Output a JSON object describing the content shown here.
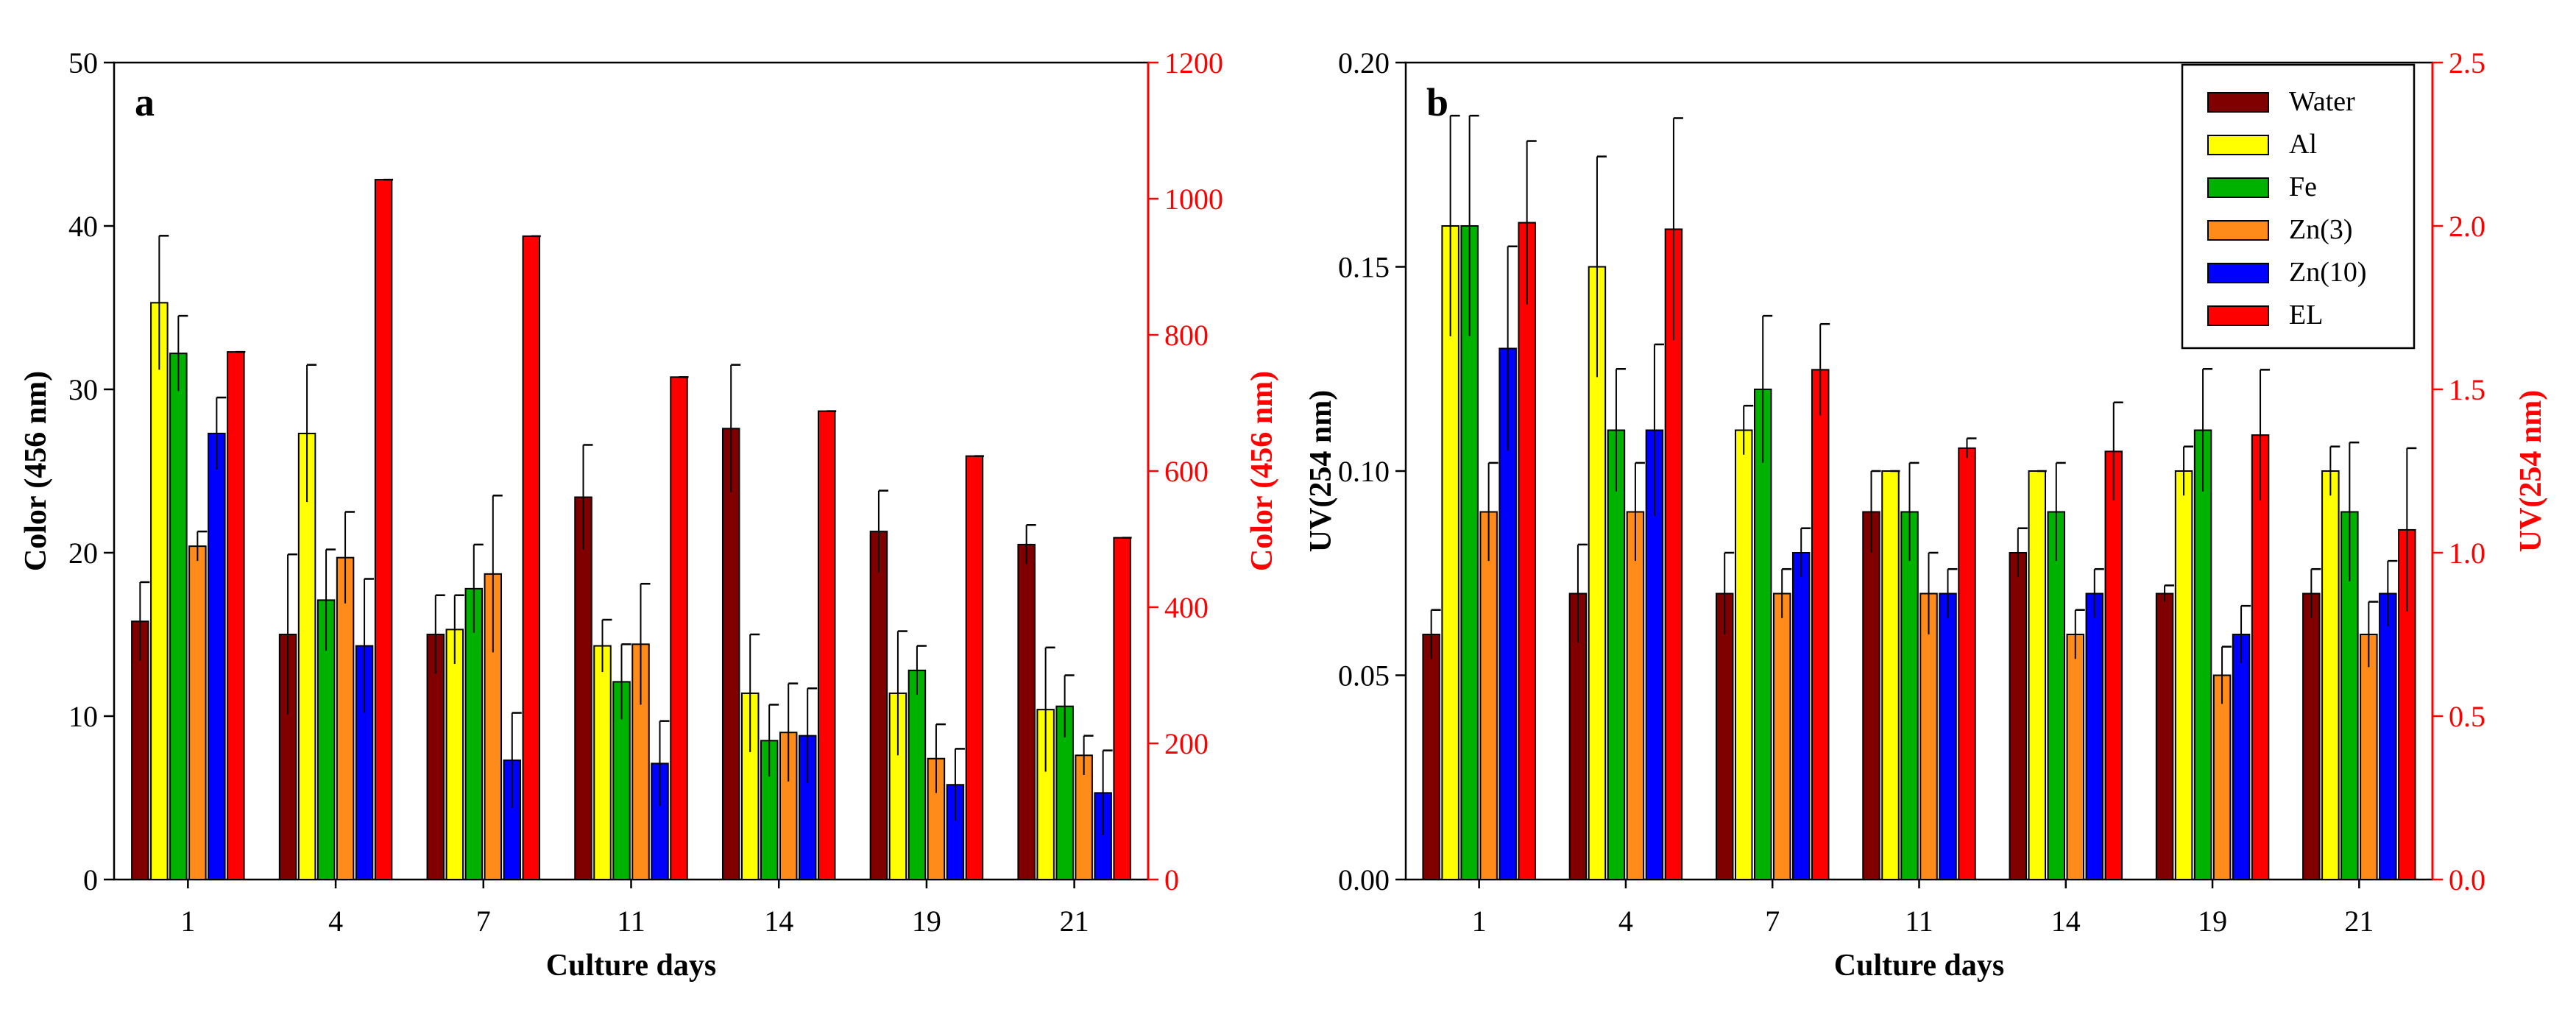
{
  "colors": {
    "Water": "#800000",
    "Al": "#ffff00",
    "Fe": "#00b200",
    "Zn(3)": "#ff8c1a",
    "Zn(10)": "#0000ff",
    "EL": "#ff0000",
    "right_axis": "#ff0000"
  },
  "legend": [
    "Water",
    "Al",
    "Fe",
    "Zn(3)",
    "Zn(10)",
    "EL"
  ],
  "chart_data": [
    {
      "type": "bar",
      "panel_label": "a",
      "xlabel": "Culture days",
      "ylabel": "Color  (456 nm)",
      "ylabel_right": "Color  (456 nm)",
      "ylim": [
        0,
        50
      ],
      "yticks": [
        "0",
        "10",
        "20",
        "30",
        "40",
        "50"
      ],
      "ylim_right": [
        0,
        1200
      ],
      "yticks_right": [
        "0",
        "200",
        "400",
        "600",
        "800",
        "1000",
        "1200"
      ],
      "categories": [
        "1",
        "4",
        "7",
        "11",
        "14",
        "19",
        "21"
      ],
      "series": [
        {
          "name": "Water",
          "axis": "left",
          "values": [
            15.8,
            15.0,
            15.0,
            23.4,
            27.6,
            21.3,
            20.5
          ],
          "errors": [
            2.4,
            4.9,
            2.4,
            3.2,
            3.9,
            2.5,
            1.2
          ]
        },
        {
          "name": "Al",
          "axis": "left",
          "values": [
            35.3,
            27.3,
            15.3,
            14.3,
            11.4,
            11.4,
            10.4
          ],
          "errors": [
            4.1,
            4.2,
            2.1,
            1.6,
            3.6,
            3.8,
            3.8
          ]
        },
        {
          "name": "Fe",
          "axis": "left",
          "values": [
            32.2,
            17.1,
            17.8,
            12.1,
            8.5,
            12.8,
            10.6
          ],
          "errors": [
            2.3,
            3.1,
            2.7,
            2.3,
            2.2,
            1.5,
            1.9
          ]
        },
        {
          "name": "Zn(3)",
          "axis": "left",
          "values": [
            20.4,
            19.7,
            18.7,
            14.4,
            9.0,
            7.4,
            7.6
          ],
          "errors": [
            0.9,
            2.8,
            4.8,
            3.7,
            3.0,
            2.1,
            1.2
          ]
        },
        {
          "name": "Zn(10)",
          "axis": "left",
          "values": [
            27.3,
            14.3,
            7.3,
            7.1,
            8.8,
            5.8,
            5.3
          ],
          "errors": [
            2.2,
            4.1,
            2.9,
            2.6,
            2.9,
            2.2,
            2.6
          ]
        },
        {
          "name": "EL",
          "axis": "right",
          "values": [
            775,
            1028,
            945,
            738,
            688,
            622,
            502
          ],
          "errors": [
            0,
            0,
            0,
            0,
            0,
            0,
            0
          ]
        }
      ]
    },
    {
      "type": "bar",
      "panel_label": "b",
      "xlabel": "Culture days",
      "ylabel": "UV(254 nm)",
      "ylabel_right": "UV(254 nm)",
      "ylim": [
        0,
        0.2
      ],
      "yticks": [
        "0.00",
        "0.05",
        "0.10",
        "0.15",
        "0.20"
      ],
      "ylim_right": [
        0,
        2.5
      ],
      "yticks_right": [
        "0.0",
        "0.5",
        "1.0",
        "1.5",
        "2.0",
        "2.5"
      ],
      "categories": [
        "1",
        "4",
        "7",
        "11",
        "14",
        "19",
        "21"
      ],
      "series": [
        {
          "name": "Water",
          "axis": "left",
          "values": [
            0.06,
            0.07,
            0.07,
            0.09,
            0.08,
            0.07,
            0.07
          ],
          "errors": [
            0.006,
            0.012,
            0.01,
            0.01,
            0.006,
            0.002,
            0.006
          ]
        },
        {
          "name": "Al",
          "axis": "left",
          "values": [
            0.16,
            0.15,
            0.11,
            0.1,
            0.1,
            0.1,
            0.1
          ],
          "errors": [
            0.027,
            0.027,
            0.006,
            0.0,
            0.0,
            0.006,
            0.006
          ]
        },
        {
          "name": "Fe",
          "axis": "left",
          "values": [
            0.16,
            0.11,
            0.12,
            0.09,
            0.09,
            0.11,
            0.09
          ],
          "errors": [
            0.027,
            0.015,
            0.018,
            0.012,
            0.012,
            0.015,
            0.017
          ]
        },
        {
          "name": "Zn(3)",
          "axis": "left",
          "values": [
            0.09,
            0.09,
            0.07,
            0.07,
            0.06,
            0.05,
            0.06
          ],
          "errors": [
            0.012,
            0.012,
            0.006,
            0.01,
            0.006,
            0.007,
            0.008
          ]
        },
        {
          "name": "Zn(10)",
          "axis": "left",
          "values": [
            0.13,
            0.11,
            0.08,
            0.07,
            0.07,
            0.06,
            0.07
          ],
          "errors": [
            0.025,
            0.021,
            0.006,
            0.006,
            0.006,
            0.007,
            0.008
          ]
        },
        {
          "name": "EL",
          "axis": "right",
          "values": [
            2.01,
            1.99,
            1.56,
            1.32,
            1.31,
            1.36,
            1.07
          ],
          "errors": [
            0.25,
            0.34,
            0.14,
            0.03,
            0.15,
            0.2,
            0.25
          ]
        }
      ]
    }
  ]
}
